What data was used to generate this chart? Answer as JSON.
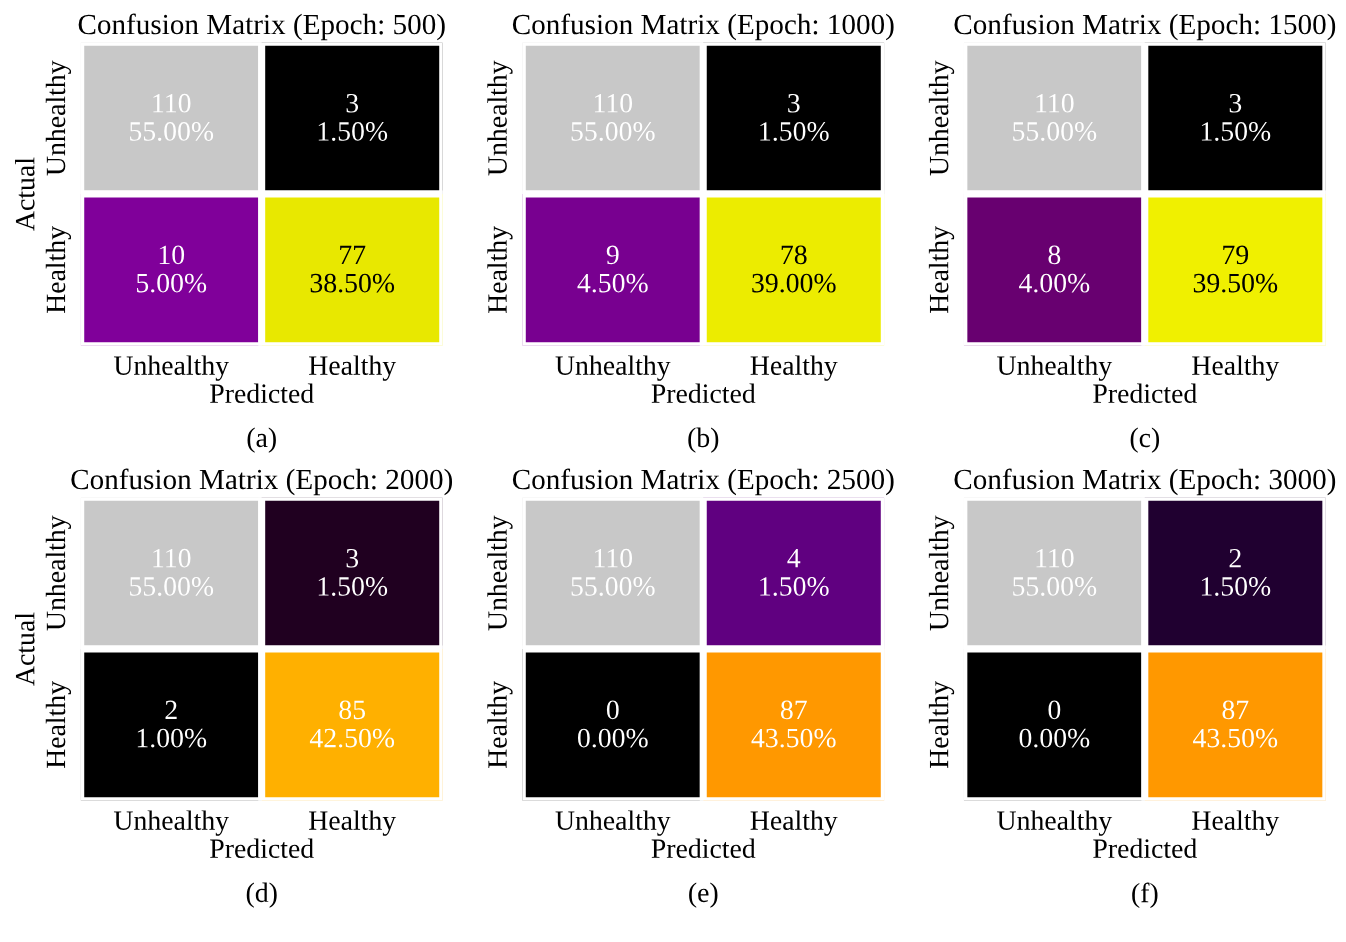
{
  "chart_data": [
    {
      "type": "heatmap",
      "title": "Confusion Matrix (Epoch: 500)",
      "xlabel": "Predicted",
      "ylabel": "Actual",
      "categories": [
        "Unhealthy",
        "Healthy"
      ],
      "y_categories": [
        "Unhealthy",
        "Healthy"
      ],
      "cells": [
        [
          110,
          3
        ],
        [
          10,
          77
        ]
      ],
      "data_labels": true,
      "colors": [
        [
          "#c8c8c8",
          "#000000"
        ],
        [
          "#80009a",
          "#e8e800"
        ]
      ],
      "annotations": [
        "55.00%",
        "1.50%",
        "5.00%",
        "38.50%",
        "(a)"
      ]
    },
    {
      "type": "heatmap",
      "title": "Confusion Matrix (Epoch: 1000)",
      "xlabel": "Predicted",
      "categories": [
        "Unhealthy",
        "Healthy"
      ],
      "y_categories": [
        "Unhealthy",
        "Healthy"
      ],
      "cells": [
        [
          110,
          3
        ],
        [
          9,
          78
        ]
      ],
      "data_labels": true,
      "colors": [
        [
          "#c8c8c8",
          "#000000"
        ],
        [
          "#780090",
          "#ecec00"
        ]
      ],
      "annotations": [
        "55.00%",
        "1.50%",
        "4.50%",
        "39.00%",
        "(b)"
      ]
    },
    {
      "type": "heatmap",
      "title": "Confusion Matrix (Epoch: 1500)",
      "xlabel": "Predicted",
      "categories": [
        "Unhealthy",
        "Healthy"
      ],
      "y_categories": [
        "Unhealthy",
        "Healthy"
      ],
      "cells": [
        [
          110,
          3
        ],
        [
          8,
          79
        ]
      ],
      "data_labels": true,
      "colors": [
        [
          "#c8c8c8",
          "#000000"
        ],
        [
          "#680070",
          "#f0f000"
        ]
      ],
      "annotations": [
        "55.00%",
        "1.50%",
        "4.00%",
        "39.50%",
        "(c)"
      ]
    },
    {
      "type": "heatmap",
      "title": "Confusion Matrix (Epoch: 2000)",
      "xlabel": "Predicted",
      "ylabel": "Actual",
      "categories": [
        "Unhealthy",
        "Healthy"
      ],
      "y_categories": [
        "Unhealthy",
        "Healthy"
      ],
      "cells": [
        [
          110,
          3
        ],
        [
          2,
          85
        ]
      ],
      "data_labels": true,
      "colors": [
        [
          "#c8c8c8",
          "#200020"
        ],
        [
          "#000000",
          "#ffb000"
        ]
      ],
      "annotations": [
        "55.00%",
        "1.50%",
        "1.00%",
        "42.50%",
        "(d)"
      ]
    },
    {
      "type": "heatmap",
      "title": "Confusion Matrix (Epoch: 2500)",
      "xlabel": "Predicted",
      "categories": [
        "Unhealthy",
        "Healthy"
      ],
      "y_categories": [
        "Unhealthy",
        "Healthy"
      ],
      "cells": [
        [
          110,
          4
        ],
        [
          0,
          87
        ]
      ],
      "data_labels": true,
      "colors": [
        [
          "#c8c8c8",
          "#600080"
        ],
        [
          "#000000",
          "#ff9800"
        ]
      ],
      "annotations": [
        "55.00%",
        "1.50%",
        "0.00%",
        "43.50%",
        "(e)"
      ]
    },
    {
      "type": "heatmap",
      "title": "Confusion Matrix (Epoch: 3000)",
      "xlabel": "Predicted",
      "categories": [
        "Unhealthy",
        "Healthy"
      ],
      "y_categories": [
        "Unhealthy",
        "Healthy"
      ],
      "cells": [
        [
          110,
          2
        ],
        [
          0,
          87
        ]
      ],
      "data_labels": true,
      "colors": [
        [
          "#c8c8c8",
          "#200030"
        ],
        [
          "#000000",
          "#ff9800"
        ]
      ],
      "annotations": [
        "55.00%",
        "1.50%",
        "0.00%",
        "43.50%",
        "(f)"
      ]
    }
  ]
}
